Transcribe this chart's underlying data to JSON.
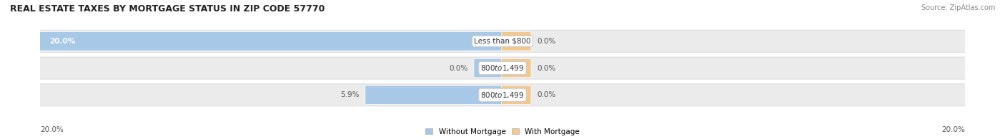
{
  "title": "REAL ESTATE TAXES BY MORTGAGE STATUS IN ZIP CODE 57770",
  "source": "Source: ZipAtlas.com",
  "rows": [
    {
      "label": "Less than $800",
      "without_mortgage": 20.0,
      "with_mortgage": 0.0
    },
    {
      "label": "$800 to $1,499",
      "without_mortgage": 0.0,
      "with_mortgage": 0.0
    },
    {
      "label": "$800 to $1,499",
      "without_mortgage": 5.9,
      "with_mortgage": 0.0
    }
  ],
  "max_val": 20.0,
  "small_bar_width": 1.2,
  "color_without": "#a8c8e8",
  "color_with": "#f0c890",
  "row_bg_color": "#ebebeb",
  "row_bg_edge": "#dddddd",
  "title_fontsize": 9,
  "label_fontsize": 7.5,
  "value_fontsize": 7.5,
  "source_fontsize": 7,
  "legend_label_without": "Without Mortgage",
  "legend_label_with": "With Mortgage",
  "bottom_left_label": "20.0%",
  "bottom_right_label": "20.0%"
}
